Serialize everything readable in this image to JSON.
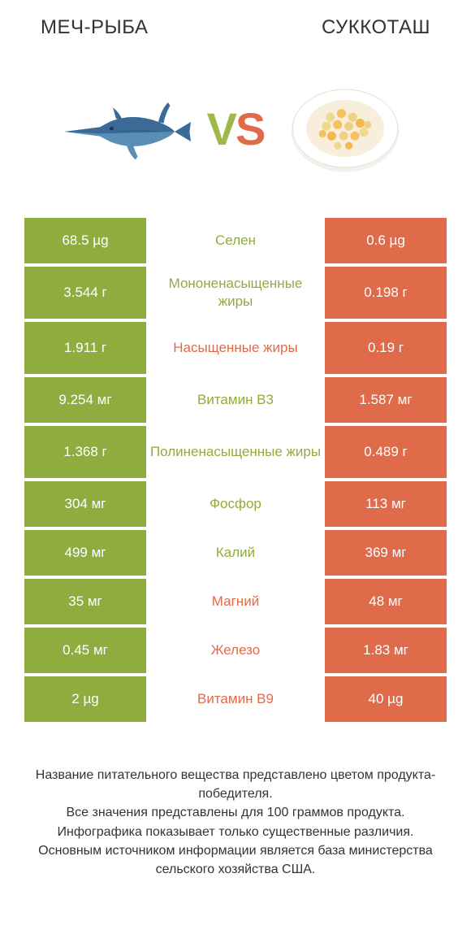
{
  "header": {
    "left": "МЕЧ-РЫБА",
    "right": "СУККОТАШ"
  },
  "vs": {
    "v": "V",
    "s": "S"
  },
  "colors": {
    "green": "#8fac3e",
    "orange": "#e06b4a",
    "text": "#333333",
    "white": "#ffffff"
  },
  "rows": [
    {
      "left": "68.5 µg",
      "mid": "Селен",
      "right": "0.6 µg",
      "winner": "left",
      "tall": false
    },
    {
      "left": "3.544 г",
      "mid": "Мононенасыщенные жиры",
      "right": "0.198 г",
      "winner": "left",
      "tall": true
    },
    {
      "left": "1.911 г",
      "mid": "Насыщенные жиры",
      "right": "0.19 г",
      "winner": "right",
      "tall": true
    },
    {
      "left": "9.254 мг",
      "mid": "Витамин B3",
      "right": "1.587 мг",
      "winner": "left",
      "tall": false
    },
    {
      "left": "1.368 г",
      "mid": "Полиненасыщенные жиры",
      "right": "0.489 г",
      "winner": "left",
      "tall": true
    },
    {
      "left": "304 мг",
      "mid": "Фосфор",
      "right": "113 мг",
      "winner": "left",
      "tall": false
    },
    {
      "left": "499 мг",
      "mid": "Калий",
      "right": "369 мг",
      "winner": "left",
      "tall": false
    },
    {
      "left": "35 мг",
      "mid": "Магний",
      "right": "48 мг",
      "winner": "right",
      "tall": false
    },
    {
      "left": "0.45 мг",
      "mid": "Железо",
      "right": "1.83 мг",
      "winner": "right",
      "tall": false
    },
    {
      "left": "2 µg",
      "mid": "Витамин B9",
      "right": "40 µg",
      "winner": "right",
      "tall": false
    }
  ],
  "footer": "Название питательного вещества представлено цветом продукта-победителя.\nВсе значения представлены для 100 граммов продукта.\nИнфографика показывает только существенные различия.\nОсновным источником информации является база министерства сельского хозяйства США."
}
